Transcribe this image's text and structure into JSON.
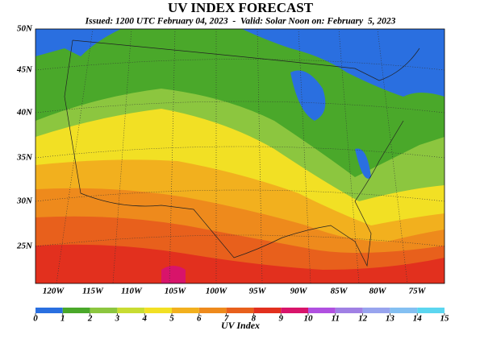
{
  "title": "UV INDEX FORECAST",
  "subtitle": "Issued: 1200 UTC February 04, 2023  -  Valid: Solar Noon on: February  5, 2023",
  "latitude_labels": [
    "50N",
    "45N",
    "40N",
    "35N",
    "30N",
    "25N"
  ],
  "longitude_labels": [
    "120W",
    "115W",
    "110W",
    "105W",
    "100W",
    "95W",
    "90W",
    "85W",
    "80W",
    "75W"
  ],
  "legend": {
    "label": "UV Index",
    "ticks": [
      0,
      1,
      2,
      3,
      4,
      5,
      6,
      7,
      8,
      9,
      10,
      11,
      12,
      13,
      14,
      15
    ],
    "colors": [
      "#2a6fe0",
      "#4aa82a",
      "#8cc63f",
      "#c8dc32",
      "#f2e024",
      "#f2b01e",
      "#ee8a1c",
      "#e8601c",
      "#e2301e",
      "#d8146a",
      "#b050e0",
      "#a080e4",
      "#98a4ee",
      "#84c0f2",
      "#5cd6f0"
    ]
  }
}
